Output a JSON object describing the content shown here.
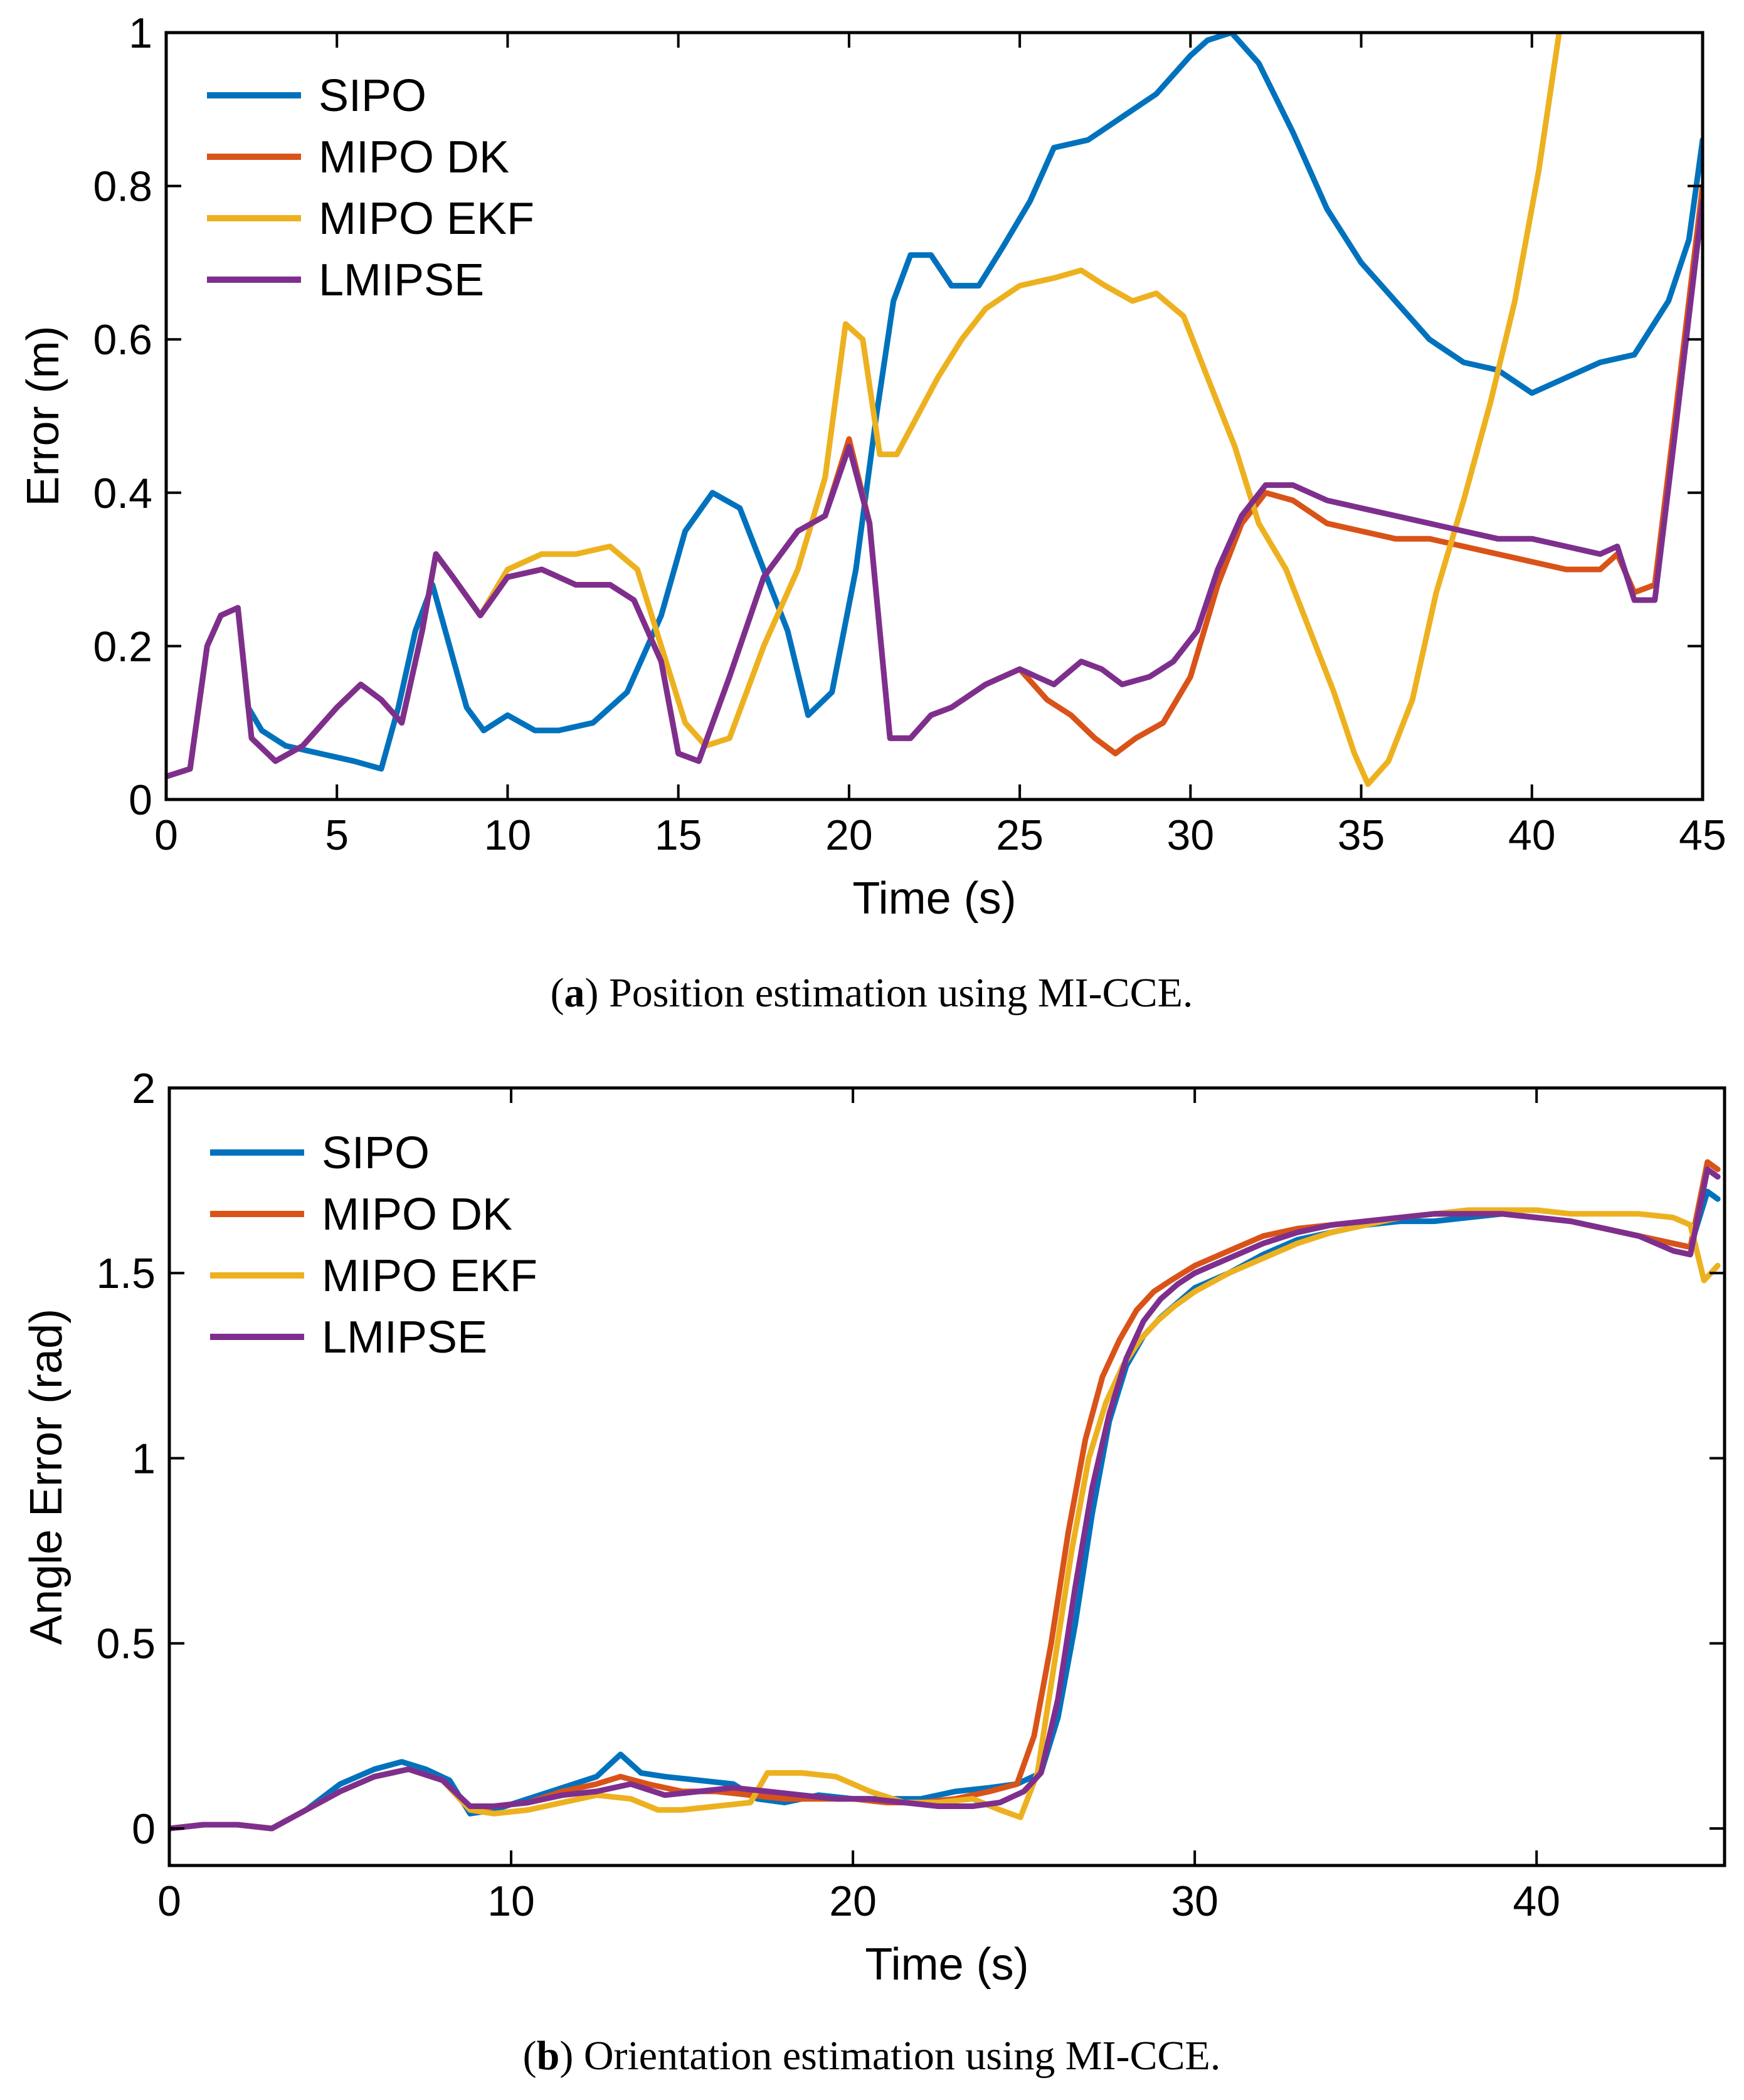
{
  "colors": {
    "SIPO": "#0072BD",
    "MIPO DK": "#D95319",
    "MIPO EKF": "#EDB120",
    "LMIPSE": "#7E2F8E"
  },
  "chart_data": [
    {
      "id": "a",
      "type": "line",
      "title": "",
      "xlabel": "Time (s)",
      "ylabel": "Error (m)",
      "xlim": [
        0,
        45
      ],
      "ylim": [
        0,
        1
      ],
      "xticks": [
        0,
        5,
        10,
        15,
        20,
        25,
        30,
        35,
        40,
        45
      ],
      "yticks": [
        0,
        0.2,
        0.4,
        0.6,
        0.8,
        1
      ],
      "legend_position": "top-left",
      "caption_label": "a",
      "caption_text": "Position estimation using MI-CCE.",
      "series": [
        {
          "name": "SIPO",
          "x": [
            0,
            0.7,
            1.2,
            1.6,
            2.1,
            2.4,
            2.8,
            3.5,
            4.5,
            5.5,
            6.3,
            6.8,
            7.3,
            7.8,
            8.3,
            8.8,
            9.3,
            10,
            10.8,
            11.5,
            12.5,
            13.5,
            14.5,
            15.2,
            16,
            16.8,
            17.5,
            18.2,
            18.8,
            19.5,
            20.2,
            20.8,
            21.3,
            21.8,
            22.4,
            23,
            23.8,
            24.5,
            25.3,
            26,
            27,
            28,
            29,
            30,
            30.5,
            31.2,
            32,
            33,
            34,
            35,
            36,
            37,
            38,
            39,
            40,
            41,
            42,
            43,
            44,
            44.6,
            45
          ],
          "y": [
            0.03,
            0.04,
            0.2,
            0.24,
            0.25,
            0.12,
            0.09,
            0.07,
            0.06,
            0.05,
            0.04,
            0.12,
            0.22,
            0.28,
            0.2,
            0.12,
            0.09,
            0.11,
            0.09,
            0.09,
            0.1,
            0.14,
            0.24,
            0.35,
            0.4,
            0.38,
            0.3,
            0.22,
            0.11,
            0.14,
            0.3,
            0.5,
            0.65,
            0.71,
            0.71,
            0.67,
            0.67,
            0.72,
            0.78,
            0.85,
            0.86,
            0.89,
            0.92,
            0.97,
            0.99,
            1.0,
            0.96,
            0.87,
            0.77,
            0.7,
            0.65,
            0.6,
            0.57,
            0.56,
            0.53,
            0.55,
            0.57,
            0.58,
            0.65,
            0.73,
            0.86
          ]
        },
        {
          "name": "MIPO DK",
          "x": [
            0,
            0.7,
            1.2,
            1.6,
            2.1,
            2.5,
            3.2,
            4,
            5,
            5.7,
            6.3,
            6.9,
            7.5,
            7.9,
            8.4,
            9.2,
            10,
            11,
            12,
            13,
            13.7,
            14.5,
            15,
            15.6,
            16.5,
            17.5,
            18.5,
            19.3,
            20,
            20.6,
            21.2,
            21.8,
            22.4,
            23,
            24,
            25,
            25.8,
            26.5,
            27.2,
            27.8,
            28.4,
            29.2,
            30,
            30.8,
            31.5,
            32.2,
            33,
            34,
            35,
            36,
            37,
            38,
            39,
            40,
            41,
            42,
            42.5,
            43,
            43.6,
            44.2,
            45
          ],
          "y": [
            0.03,
            0.04,
            0.2,
            0.24,
            0.25,
            0.08,
            0.05,
            0.07,
            0.12,
            0.15,
            0.13,
            0.1,
            0.22,
            0.32,
            0.29,
            0.24,
            0.29,
            0.3,
            0.28,
            0.28,
            0.26,
            0.18,
            0.06,
            0.05,
            0.16,
            0.29,
            0.35,
            0.37,
            0.47,
            0.36,
            0.08,
            0.08,
            0.11,
            0.12,
            0.15,
            0.17,
            0.13,
            0.11,
            0.08,
            0.06,
            0.08,
            0.1,
            0.16,
            0.28,
            0.36,
            0.4,
            0.39,
            0.36,
            0.35,
            0.34,
            0.34,
            0.33,
            0.32,
            0.31,
            0.3,
            0.3,
            0.32,
            0.27,
            0.28,
            0.5,
            0.8
          ]
        },
        {
          "name": "MIPO EKF",
          "x": [
            0,
            0.7,
            1.2,
            1.6,
            2.1,
            2.5,
            3.2,
            4,
            5,
            5.7,
            6.3,
            6.9,
            7.5,
            7.9,
            8.4,
            9.2,
            10,
            11,
            12,
            13,
            13.8,
            14.5,
            15.2,
            15.8,
            16.5,
            17.5,
            18.5,
            19.3,
            19.9,
            20.4,
            20.9,
            21.4,
            22,
            22.6,
            23.3,
            24,
            25,
            26,
            26.8,
            27.5,
            28.3,
            29,
            29.8,
            30.5,
            31.3,
            32,
            32.8,
            33.5,
            34.2,
            34.8,
            35.2,
            35.8,
            36.5,
            37.2,
            38,
            38.8,
            39.5,
            40.2,
            40.8
          ],
          "y": [
            0.03,
            0.04,
            0.2,
            0.24,
            0.25,
            0.08,
            0.05,
            0.07,
            0.12,
            0.15,
            0.13,
            0.1,
            0.22,
            0.32,
            0.29,
            0.24,
            0.3,
            0.32,
            0.32,
            0.33,
            0.3,
            0.2,
            0.1,
            0.07,
            0.08,
            0.2,
            0.3,
            0.42,
            0.62,
            0.6,
            0.45,
            0.45,
            0.5,
            0.55,
            0.6,
            0.64,
            0.67,
            0.68,
            0.69,
            0.67,
            0.65,
            0.66,
            0.63,
            0.55,
            0.46,
            0.36,
            0.3,
            0.22,
            0.14,
            0.06,
            0.02,
            0.05,
            0.13,
            0.27,
            0.39,
            0.52,
            0.65,
            0.82,
            1.0
          ]
        },
        {
          "name": "LMIPSE",
          "x": [
            0,
            0.7,
            1.2,
            1.6,
            2.1,
            2.5,
            3.2,
            4,
            5,
            5.7,
            6.3,
            6.9,
            7.5,
            7.9,
            8.4,
            9.2,
            10,
            11,
            12,
            13,
            13.7,
            14.5,
            15,
            15.6,
            16.5,
            17.5,
            18.5,
            19.3,
            20,
            20.6,
            21.2,
            21.8,
            22.4,
            23,
            24,
            25,
            26,
            26.8,
            27.4,
            28,
            28.8,
            29.5,
            30.2,
            30.8,
            31.5,
            32.2,
            33,
            34,
            35,
            36,
            37,
            38,
            39,
            40,
            41,
            42,
            42.5,
            43,
            43.6,
            44.2,
            45
          ],
          "y": [
            0.03,
            0.04,
            0.2,
            0.24,
            0.25,
            0.08,
            0.05,
            0.07,
            0.12,
            0.15,
            0.13,
            0.1,
            0.22,
            0.32,
            0.29,
            0.24,
            0.29,
            0.3,
            0.28,
            0.28,
            0.26,
            0.18,
            0.06,
            0.05,
            0.16,
            0.29,
            0.35,
            0.37,
            0.46,
            0.36,
            0.08,
            0.08,
            0.11,
            0.12,
            0.15,
            0.17,
            0.15,
            0.18,
            0.17,
            0.15,
            0.16,
            0.18,
            0.22,
            0.3,
            0.37,
            0.41,
            0.41,
            0.39,
            0.38,
            0.37,
            0.36,
            0.35,
            0.34,
            0.34,
            0.33,
            0.32,
            0.33,
            0.26,
            0.26,
            0.48,
            0.78
          ]
        }
      ]
    },
    {
      "id": "b",
      "type": "line",
      "title": "",
      "xlabel": "Time (s)",
      "ylabel": "Angle Error (rad)",
      "xlim": [
        0,
        45.5
      ],
      "ylim": [
        -0.1,
        2
      ],
      "xticks": [
        0,
        10,
        20,
        30,
        40
      ],
      "yticks": [
        0,
        0.5,
        1,
        1.5,
        2
      ],
      "legend_position": "top-left",
      "caption_label": "b",
      "caption_text": "Orientation estimation using MI-CCE.",
      "series": [
        {
          "name": "SIPO",
          "x": [
            0,
            1,
            2,
            3,
            4,
            5,
            6,
            6.8,
            7.5,
            8.2,
            8.8,
            9.5,
            10.5,
            11.5,
            12.5,
            13.2,
            13.8,
            14.5,
            15.5,
            16.5,
            17.2,
            18,
            19,
            20,
            21,
            22,
            23,
            24,
            24.8,
            25.5,
            26,
            26.5,
            27,
            27.5,
            28,
            28.5,
            29,
            29.5,
            30,
            31,
            32,
            33,
            34,
            35,
            36,
            37,
            38,
            39,
            40,
            41,
            42,
            43,
            44,
            44.5,
            45,
            45.3
          ],
          "y": [
            0.0,
            0.01,
            0.01,
            0.0,
            0.05,
            0.12,
            0.16,
            0.18,
            0.16,
            0.13,
            0.04,
            0.05,
            0.08,
            0.11,
            0.14,
            0.2,
            0.15,
            0.14,
            0.13,
            0.12,
            0.08,
            0.07,
            0.09,
            0.08,
            0.08,
            0.08,
            0.1,
            0.11,
            0.12,
            0.15,
            0.3,
            0.55,
            0.85,
            1.1,
            1.25,
            1.33,
            1.38,
            1.42,
            1.46,
            1.5,
            1.55,
            1.59,
            1.61,
            1.63,
            1.64,
            1.64,
            1.65,
            1.66,
            1.65,
            1.64,
            1.62,
            1.6,
            1.58,
            1.57,
            1.72,
            1.7
          ]
        },
        {
          "name": "MIPO DK",
          "x": [
            0,
            1,
            2,
            3,
            4,
            5,
            6,
            7,
            8,
            8.8,
            9.5,
            10.5,
            11.5,
            12.5,
            13.2,
            14,
            15,
            16,
            17,
            18,
            19,
            20,
            21,
            22,
            23,
            24,
            24.8,
            25.3,
            25.8,
            26.3,
            26.8,
            27.3,
            27.8,
            28.3,
            28.8,
            29.3,
            30,
            31,
            32,
            33,
            34,
            35,
            36,
            37,
            38,
            39,
            40,
            41,
            42,
            43,
            44,
            44.5,
            45,
            45.3
          ],
          "y": [
            0.0,
            0.01,
            0.01,
            0.0,
            0.05,
            0.1,
            0.14,
            0.16,
            0.13,
            0.05,
            0.06,
            0.07,
            0.1,
            0.12,
            0.14,
            0.12,
            0.1,
            0.1,
            0.09,
            0.08,
            0.08,
            0.08,
            0.07,
            0.07,
            0.08,
            0.1,
            0.12,
            0.25,
            0.5,
            0.8,
            1.05,
            1.22,
            1.32,
            1.4,
            1.45,
            1.48,
            1.52,
            1.56,
            1.6,
            1.62,
            1.63,
            1.64,
            1.65,
            1.66,
            1.66,
            1.66,
            1.65,
            1.64,
            1.62,
            1.6,
            1.58,
            1.57,
            1.8,
            1.78
          ]
        },
        {
          "name": "MIPO EKF",
          "x": [
            0,
            1,
            2,
            3,
            4,
            5,
            6,
            7,
            8,
            8.8,
            9.5,
            10.5,
            11.5,
            12.5,
            13.5,
            14.3,
            15,
            16,
            17,
            17.5,
            18.5,
            19.5,
            20.5,
            21.5,
            22.5,
            23.5,
            24.3,
            24.9,
            25.4,
            25.9,
            26.4,
            26.9,
            27.4,
            27.9,
            28.4,
            28.9,
            29.4,
            30,
            31,
            32,
            33,
            34,
            35,
            36,
            37,
            38,
            39,
            40,
            41,
            42,
            43,
            44,
            44.5,
            44.9,
            45.3
          ],
          "y": [
            0.0,
            0.01,
            0.01,
            0.0,
            0.05,
            0.1,
            0.14,
            0.16,
            0.13,
            0.05,
            0.04,
            0.05,
            0.07,
            0.09,
            0.08,
            0.05,
            0.05,
            0.06,
            0.07,
            0.15,
            0.15,
            0.14,
            0.1,
            0.07,
            0.07,
            0.08,
            0.05,
            0.03,
            0.15,
            0.45,
            0.75,
            1.0,
            1.15,
            1.25,
            1.32,
            1.37,
            1.41,
            1.45,
            1.5,
            1.54,
            1.58,
            1.61,
            1.63,
            1.65,
            1.66,
            1.67,
            1.67,
            1.67,
            1.66,
            1.66,
            1.66,
            1.65,
            1.63,
            1.48,
            1.52
          ]
        },
        {
          "name": "LMIPSE",
          "x": [
            0,
            1,
            2,
            3,
            4,
            5,
            6,
            7,
            8,
            8.8,
            9.5,
            10.5,
            11.5,
            12.5,
            13.5,
            14.5,
            15.5,
            16.5,
            17.5,
            18.5,
            19.5,
            20.5,
            21.5,
            22.5,
            23.5,
            24.3,
            25,
            25.5,
            26,
            26.5,
            27,
            27.5,
            28,
            28.5,
            29,
            29.5,
            30,
            31,
            32,
            33,
            34,
            35,
            36,
            37,
            38,
            39,
            40,
            41,
            42,
            43,
            44,
            44.5,
            45,
            45.3
          ],
          "y": [
            0.0,
            0.01,
            0.01,
            0.0,
            0.05,
            0.1,
            0.14,
            0.16,
            0.13,
            0.06,
            0.06,
            0.07,
            0.09,
            0.1,
            0.12,
            0.09,
            0.1,
            0.11,
            0.1,
            0.09,
            0.08,
            0.08,
            0.07,
            0.06,
            0.06,
            0.07,
            0.1,
            0.15,
            0.35,
            0.65,
            0.92,
            1.12,
            1.27,
            1.37,
            1.43,
            1.47,
            1.5,
            1.54,
            1.58,
            1.61,
            1.63,
            1.64,
            1.65,
            1.66,
            1.66,
            1.66,
            1.65,
            1.64,
            1.62,
            1.6,
            1.56,
            1.55,
            1.78,
            1.76
          ]
        }
      ]
    }
  ]
}
